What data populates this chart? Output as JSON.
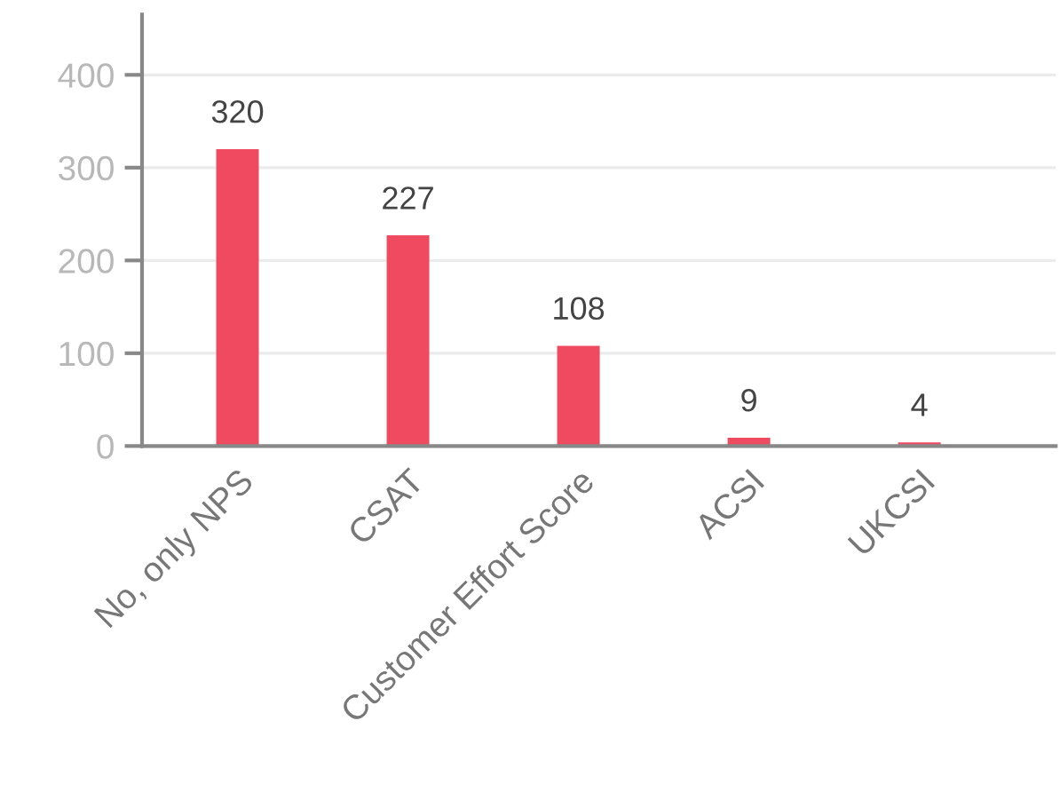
{
  "chart_data": {
    "type": "bar",
    "categories": [
      "No, only NPS",
      "CSAT",
      "Customer Effort Score",
      "ACSI",
      "UKCSI"
    ],
    "values": [
      320,
      227,
      108,
      9,
      4
    ],
    "color": "#ef4a5f",
    "ylim": [
      0,
      465
    ],
    "yticks": [
      0,
      100,
      200,
      300,
      400
    ],
    "grid": "y",
    "data_labels": true
  }
}
